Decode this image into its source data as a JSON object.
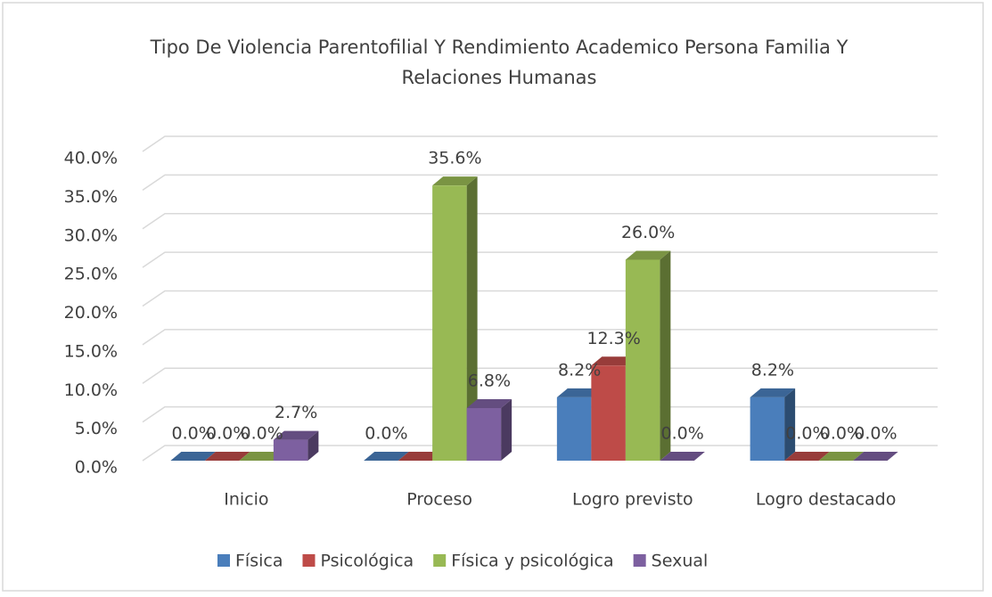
{
  "chart_data": {
    "type": "bar3d",
    "title": "Tipo De Violencia Parentofilial Y Rendimiento Academico  Persona Familia Y Relaciones Humanas",
    "categories": [
      "Inicio",
      "Proceso",
      "Logro previsto",
      "Logro destacado"
    ],
    "series": [
      {
        "name": "Física",
        "color": "#4a7ebb",
        "values": [
          0,
          0,
          8.2,
          8.2
        ],
        "value_labels": [
          "0.0%",
          "0.0%",
          "8.2%",
          "8.2%"
        ]
      },
      {
        "name": "Psicológica",
        "color": "#be4b48",
        "values": [
          0,
          0,
          12.3,
          0
        ],
        "value_labels": [
          "0.0%",
          null,
          "12.3%",
          "0.0%"
        ]
      },
      {
        "name": "Física y psicológica",
        "color": "#98b954",
        "values": [
          0,
          35.6,
          26.0,
          0
        ],
        "value_labels": [
          "0.0%",
          "35.6%",
          "26.0%",
          "0.0%"
        ]
      },
      {
        "name": "Sexual",
        "color": "#7d60a0",
        "values": [
          2.7,
          6.8,
          0,
          0
        ],
        "value_labels": [
          "2.7%",
          "6.8%",
          "0.0%",
          "0.0%"
        ]
      }
    ],
    "ylim": [
      0,
      40
    ],
    "yticks": [
      {
        "value": 0,
        "label": "0.0%"
      },
      {
        "value": 5,
        "label": "5.0%"
      },
      {
        "value": 10,
        "label": "10.0%"
      },
      {
        "value": 15,
        "label": "15.0%"
      },
      {
        "value": 20,
        "label": "20.0%"
      },
      {
        "value": 25,
        "label": "25.0%"
      },
      {
        "value": 30,
        "label": "30.0%"
      },
      {
        "value": 35,
        "label": "35.0%"
      },
      {
        "value": 40,
        "label": "40.0%"
      }
    ],
    "grid": true,
    "legend": "bottom"
  }
}
